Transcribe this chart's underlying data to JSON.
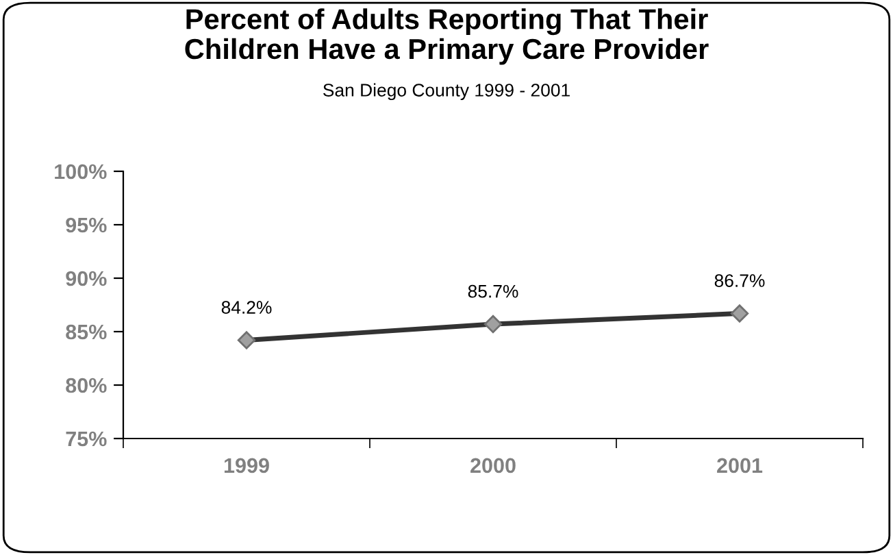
{
  "chart_data": {
    "type": "line",
    "title": "Percent of Adults Reporting That Their\nChildren Have a Primary Care Provider",
    "subtitle": "San Diego County 1999 - 2001",
    "categories": [
      "1999",
      "2000",
      "2001"
    ],
    "series": [
      {
        "color": "#333333",
        "values": [
          84.2,
          85.7,
          86.7
        ]
      }
    ],
    "marker": "diamond",
    "line_style": "solid",
    "value_labels": [
      "84.2%",
      "85.7%",
      "86.7%"
    ],
    "ylim": [
      75,
      100
    ],
    "yticks": [
      {
        "value": 75,
        "label": "75%"
      },
      {
        "value": 80,
        "label": "80%"
      },
      {
        "value": 85,
        "label": "85%"
      },
      {
        "value": 90,
        "label": "90%"
      },
      {
        "value": 95,
        "label": "95%"
      },
      {
        "value": 100,
        "label": "100%"
      }
    ],
    "grid": false
  }
}
